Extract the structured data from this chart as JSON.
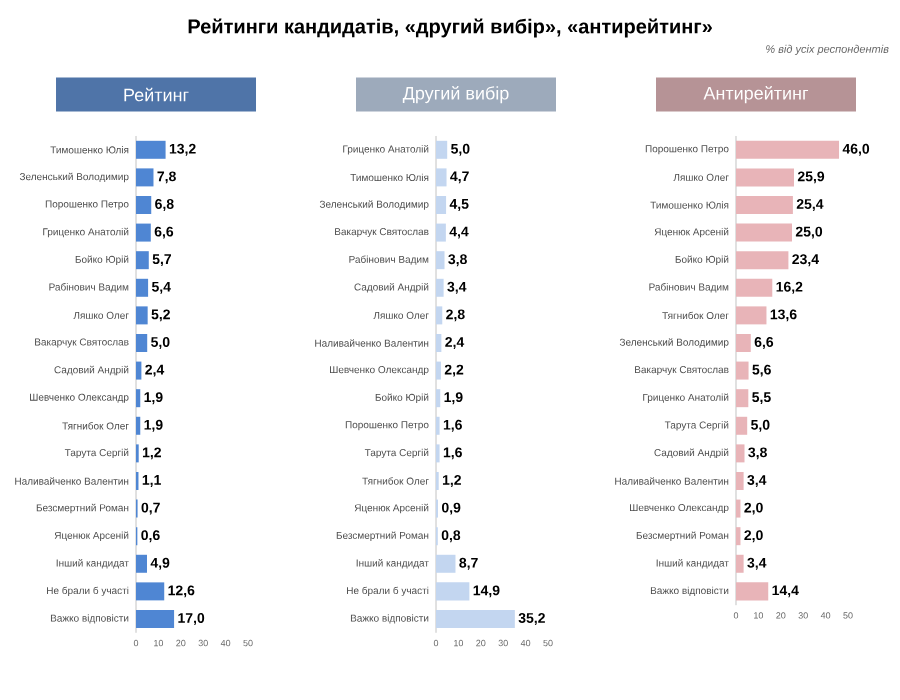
{
  "chart_data": [
    {
      "type": "bar",
      "orientation": "horizontal",
      "title": "Рейтинг",
      "annotations": [
        "Рейтинги кандидатів, «другий вибір», «антирейтинг»"
      ],
      "color": "#4f86d3",
      "categories": [
        "Тимошенко Юлія",
        "Зеленський Володимир",
        "Порошенко Петро",
        "Гриценко Анатолій",
        "Бойко Юрій",
        "Рабінович Вадим",
        "Ляшко Олег",
        "Вакарчук Святослав",
        "Садовий Андрій",
        "Шевченко Олександр",
        "Тягнибок Олег",
        "Тарута Сергій",
        "Наливайченко Валентин",
        "Безсмертний Роман",
        "Яценюк Арсеній",
        "Інший кандидат",
        "Не брали б участі",
        "Важко відповісти"
      ],
      "values": [
        13.2,
        7.8,
        6.8,
        6.6,
        5.7,
        5.4,
        5.2,
        5.0,
        2.4,
        1.9,
        1.9,
        1.2,
        1.1,
        0.7,
        0.6,
        4.9,
        12.6,
        17.0
      ],
      "value_labels": [
        "13,2",
        "7,8",
        "6,8",
        "6,6",
        "5,7",
        "5,4",
        "5,2",
        "5,0",
        "2,4",
        "1,9",
        "1,9",
        "1,2",
        "1,1",
        "0,7",
        "0,6",
        "4,9",
        "12,6",
        "17,0"
      ],
      "xlim": [
        0,
        50
      ],
      "xticks": [
        0,
        10,
        20,
        30,
        40,
        50
      ]
    },
    {
      "type": "bar",
      "orientation": "horizontal",
      "title": "Другий вибір",
      "color": "#c3d6f0",
      "categories": [
        "Гриценко Анатолій",
        "Тимошенко Юлія",
        "Зеленський Володимир",
        "Вакарчук Святослав",
        "Рабінович Вадим",
        "Садовий Андрій",
        "Ляшко Олег",
        "Наливайченко Валентин",
        "Шевченко Олександр",
        "Бойко Юрій",
        "Порошенко Петро",
        "Тарута Сергій",
        "Тягнибок Олег",
        "Яценюк Арсеній",
        "Безсмертний Роман",
        "Інший кандидат",
        "Не брали б участі",
        "Важко відповісти"
      ],
      "values": [
        5.0,
        4.7,
        4.5,
        4.4,
        3.8,
        3.4,
        2.8,
        2.4,
        2.2,
        1.9,
        1.6,
        1.6,
        1.2,
        0.9,
        0.8,
        8.7,
        14.9,
        35.2
      ],
      "value_labels": [
        "5,0",
        "4,7",
        "4,5",
        "4,4",
        "3,8",
        "3,4",
        "2,8",
        "2,4",
        "2,2",
        "1,9",
        "1,6",
        "1,6",
        "1,2",
        "0,9",
        "0,8",
        "8,7",
        "14,9",
        "35,2"
      ],
      "xlim": [
        0,
        50
      ],
      "xticks": [
        0,
        10,
        20,
        30,
        40,
        50
      ]
    },
    {
      "type": "bar",
      "orientation": "horizontal",
      "title": "Антирейтинг",
      "annotations": [
        "% від усіх респондентів"
      ],
      "color": "#e8b4b8",
      "categories": [
        "Порошенко Петро",
        "Ляшко Олег",
        "Тимошенко Юлія",
        "Яценюк Арсеній",
        "Бойко Юрій",
        "Рабінович Вадим",
        "Тягнибок Олег",
        "Зеленський Володимир",
        "Вакарчук Святослав",
        "Гриценко Анатолій",
        "Тарута Сергій",
        "Садовий Андрій",
        "Наливайченко Валентин",
        "Шевченко Олександр",
        "Безсмертний Роман",
        "Інший кандидат",
        "Важко відповісти"
      ],
      "values": [
        46.0,
        25.9,
        25.4,
        25.0,
        23.4,
        16.2,
        13.6,
        6.6,
        5.6,
        5.5,
        5.0,
        3.8,
        3.4,
        2.0,
        2.0,
        3.4,
        14.4
      ],
      "value_labels": [
        "46,0",
        "25,9",
        "25,4",
        "25,0",
        "23,4",
        "16,2",
        "13,6",
        "6,6",
        "5,6",
        "5,5",
        "5,0",
        "3,8",
        "3,4",
        "2,0",
        "2,0",
        "3,4",
        "14,4"
      ],
      "xlim": [
        0,
        50
      ],
      "xticks": [
        0,
        10,
        20,
        30,
        40,
        50
      ]
    }
  ]
}
